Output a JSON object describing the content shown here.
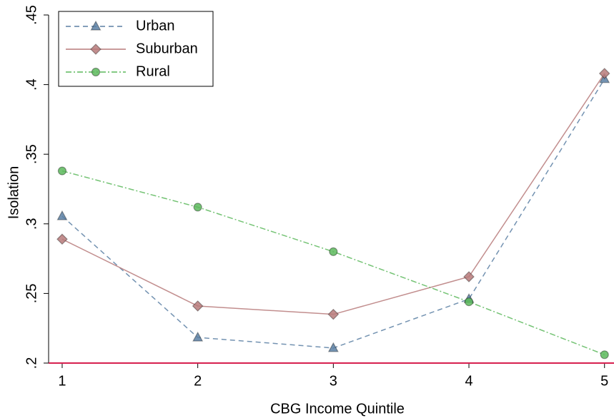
{
  "chart_data": {
    "type": "line",
    "x_label": "CBG Income Quintile",
    "y_label": "Isolation",
    "x": [
      1,
      2,
      3,
      4,
      5
    ],
    "series": [
      {
        "name": "Urban",
        "color": "#5b7fa3",
        "dash": "7,5",
        "marker": "triangle",
        "values": [
          0.3055,
          0.2184,
          0.2108,
          0.246,
          0.404
        ]
      },
      {
        "name": "Suburban",
        "color": "#b77a7a",
        "dash": "none",
        "marker": "diamond",
        "values": [
          0.289,
          0.241,
          0.235,
          0.262,
          0.408
        ]
      },
      {
        "name": "Rural",
        "color": "#5cb85c",
        "dash": "8,3,2,3",
        "marker": "circle",
        "values": [
          0.338,
          0.312,
          0.28,
          0.244,
          0.206
        ]
      }
    ],
    "xlim": [
      0.9,
      5.07
    ],
    "ylim": [
      0.2,
      0.45
    ],
    "xticks": [
      1,
      2,
      3,
      4,
      5
    ],
    "yticks": [
      {
        "value": 0.2,
        "label": ".2"
      },
      {
        "value": 0.25,
        "label": ".25"
      },
      {
        "value": 0.3,
        "label": ".3"
      },
      {
        "value": 0.35,
        "label": ".35"
      },
      {
        "value": 0.4,
        "label": ".4"
      },
      {
        "value": 0.45,
        "label": ".45"
      }
    ],
    "reference_line": {
      "value": 0.2,
      "color": "#d6204f"
    },
    "legend": "top-left",
    "grid": false
  }
}
